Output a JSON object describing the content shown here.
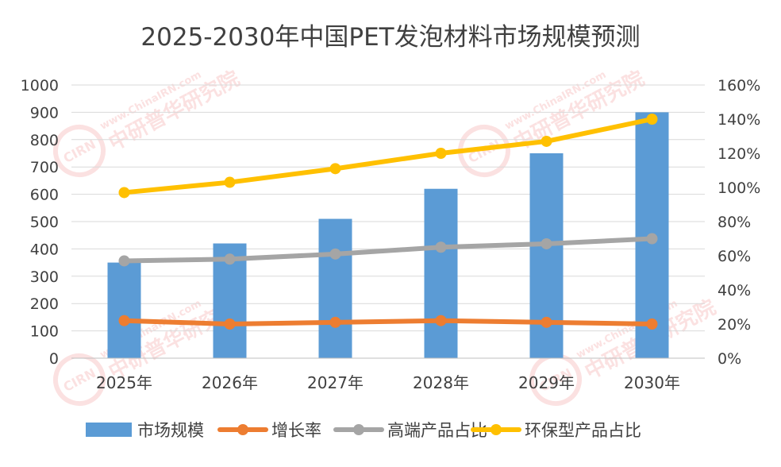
{
  "chart_data": {
    "type": "bar",
    "title": "2025-2030年中国PET发泡材料市场规模预测",
    "categories": [
      "2025年",
      "2026年",
      "2027年",
      "2028年",
      "2029年",
      "2030年"
    ],
    "y_left": {
      "min": 0,
      "max": 1000,
      "step": 100,
      "ticks": [
        "0",
        "100",
        "200",
        "300",
        "400",
        "500",
        "600",
        "700",
        "800",
        "900",
        "1000"
      ]
    },
    "y_right": {
      "min": 0,
      "max": 1.6,
      "step": 0.2,
      "ticks": [
        "0%",
        "20%",
        "40%",
        "60%",
        "80%",
        "100%",
        "120%",
        "140%",
        "160%"
      ]
    },
    "grid": true,
    "legend_position": "bottom",
    "series": [
      {
        "name": "市场规模",
        "type": "bar",
        "axis": "left",
        "color": "#5b9bd5",
        "values": [
          350,
          420,
          510,
          620,
          750,
          900
        ]
      },
      {
        "name": "增长率",
        "type": "line",
        "axis": "right",
        "color": "#ed7d31",
        "values": [
          0.22,
          0.2,
          0.21,
          0.22,
          0.21,
          0.2
        ]
      },
      {
        "name": "高端产品占比",
        "type": "line",
        "axis": "right",
        "color": "#a5a5a5",
        "values": [
          0.57,
          0.58,
          0.61,
          0.65,
          0.67,
          0.7
        ]
      },
      {
        "name": "环保型产品占比",
        "type": "line",
        "axis": "right",
        "color": "#ffc000",
        "values": [
          0.97,
          1.03,
          1.11,
          1.2,
          1.27,
          1.4
        ]
      }
    ]
  },
  "watermark": {
    "brand": "CIRN",
    "url": "www.ChinaIRN.com",
    "org": "中研普华研究院"
  }
}
